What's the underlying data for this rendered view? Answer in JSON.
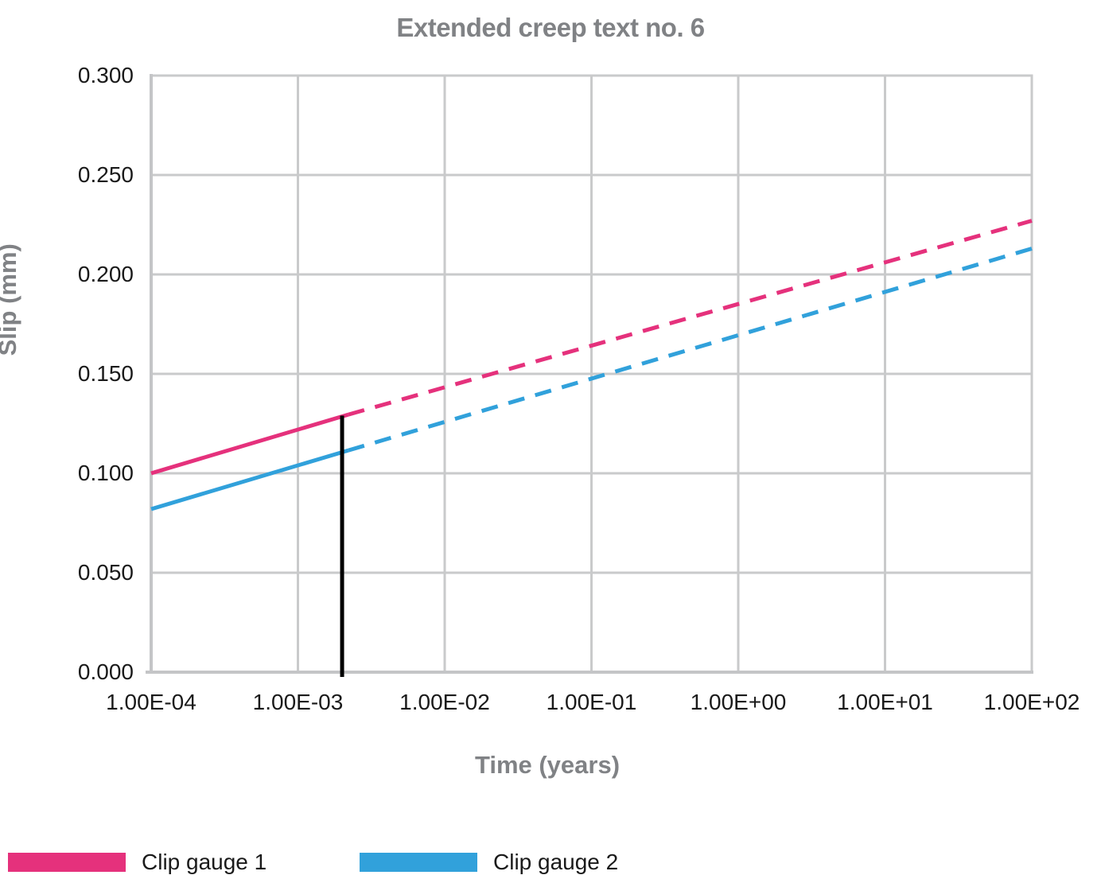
{
  "chart_data": {
    "type": "line",
    "title": "Extended creep text no. 6",
    "xlabel": "Time (years)",
    "ylabel": "Slip (mm)",
    "x_scale": "log",
    "xlim": [
      0.0001,
      100
    ],
    "ylim": [
      0.0,
      0.3
    ],
    "grid": true,
    "legend_position": "bottom",
    "x_ticks": [
      {
        "value": 0.0001,
        "label": "1.00E-04"
      },
      {
        "value": 0.001,
        "label": "1.00E-03"
      },
      {
        "value": 0.01,
        "label": "1.00E-02"
      },
      {
        "value": 0.1,
        "label": "1.00E-01"
      },
      {
        "value": 1,
        "label": "1.00E+00"
      },
      {
        "value": 10,
        "label": "1.00E+01"
      },
      {
        "value": 100,
        "label": "1.00E+02"
      }
    ],
    "y_ticks": [
      {
        "value": 0.0,
        "label": "0.000"
      },
      {
        "value": 0.05,
        "label": "0.050"
      },
      {
        "value": 0.1,
        "label": "0.100"
      },
      {
        "value": 0.15,
        "label": "0.150"
      },
      {
        "value": 0.2,
        "label": "0.200"
      },
      {
        "value": 0.25,
        "label": "0.250"
      },
      {
        "value": 0.3,
        "label": "0.300"
      }
    ],
    "series": [
      {
        "name": "Clip gauge 1",
        "color": "#E5317C",
        "solid_segment": [
          [
            0.0001,
            0.1
          ],
          [
            0.0022,
            0.1295
          ]
        ],
        "dashed_segment": [
          [
            0.0022,
            0.1295
          ],
          [
            100,
            0.227
          ]
        ]
      },
      {
        "name": "Clip gauge 2",
        "color": "#31A1DB",
        "solid_segment": [
          [
            0.0001,
            0.082
          ],
          [
            0.0022,
            0.1115
          ]
        ],
        "dashed_segment": [
          [
            0.0022,
            0.1115
          ],
          [
            100,
            0.213
          ]
        ]
      }
    ],
    "marker_line": {
      "x": 0.002,
      "y_from": 0.0,
      "y_to": 0.129,
      "color": "#000000",
      "meaning": "end of measured data / start of extrapolation"
    },
    "colors": {
      "grid": "#C9CACB",
      "axis": "#C4C5C7",
      "tick_text": "#1A1A1A",
      "label_text": "#808285",
      "background": "#FFFFFF"
    }
  }
}
